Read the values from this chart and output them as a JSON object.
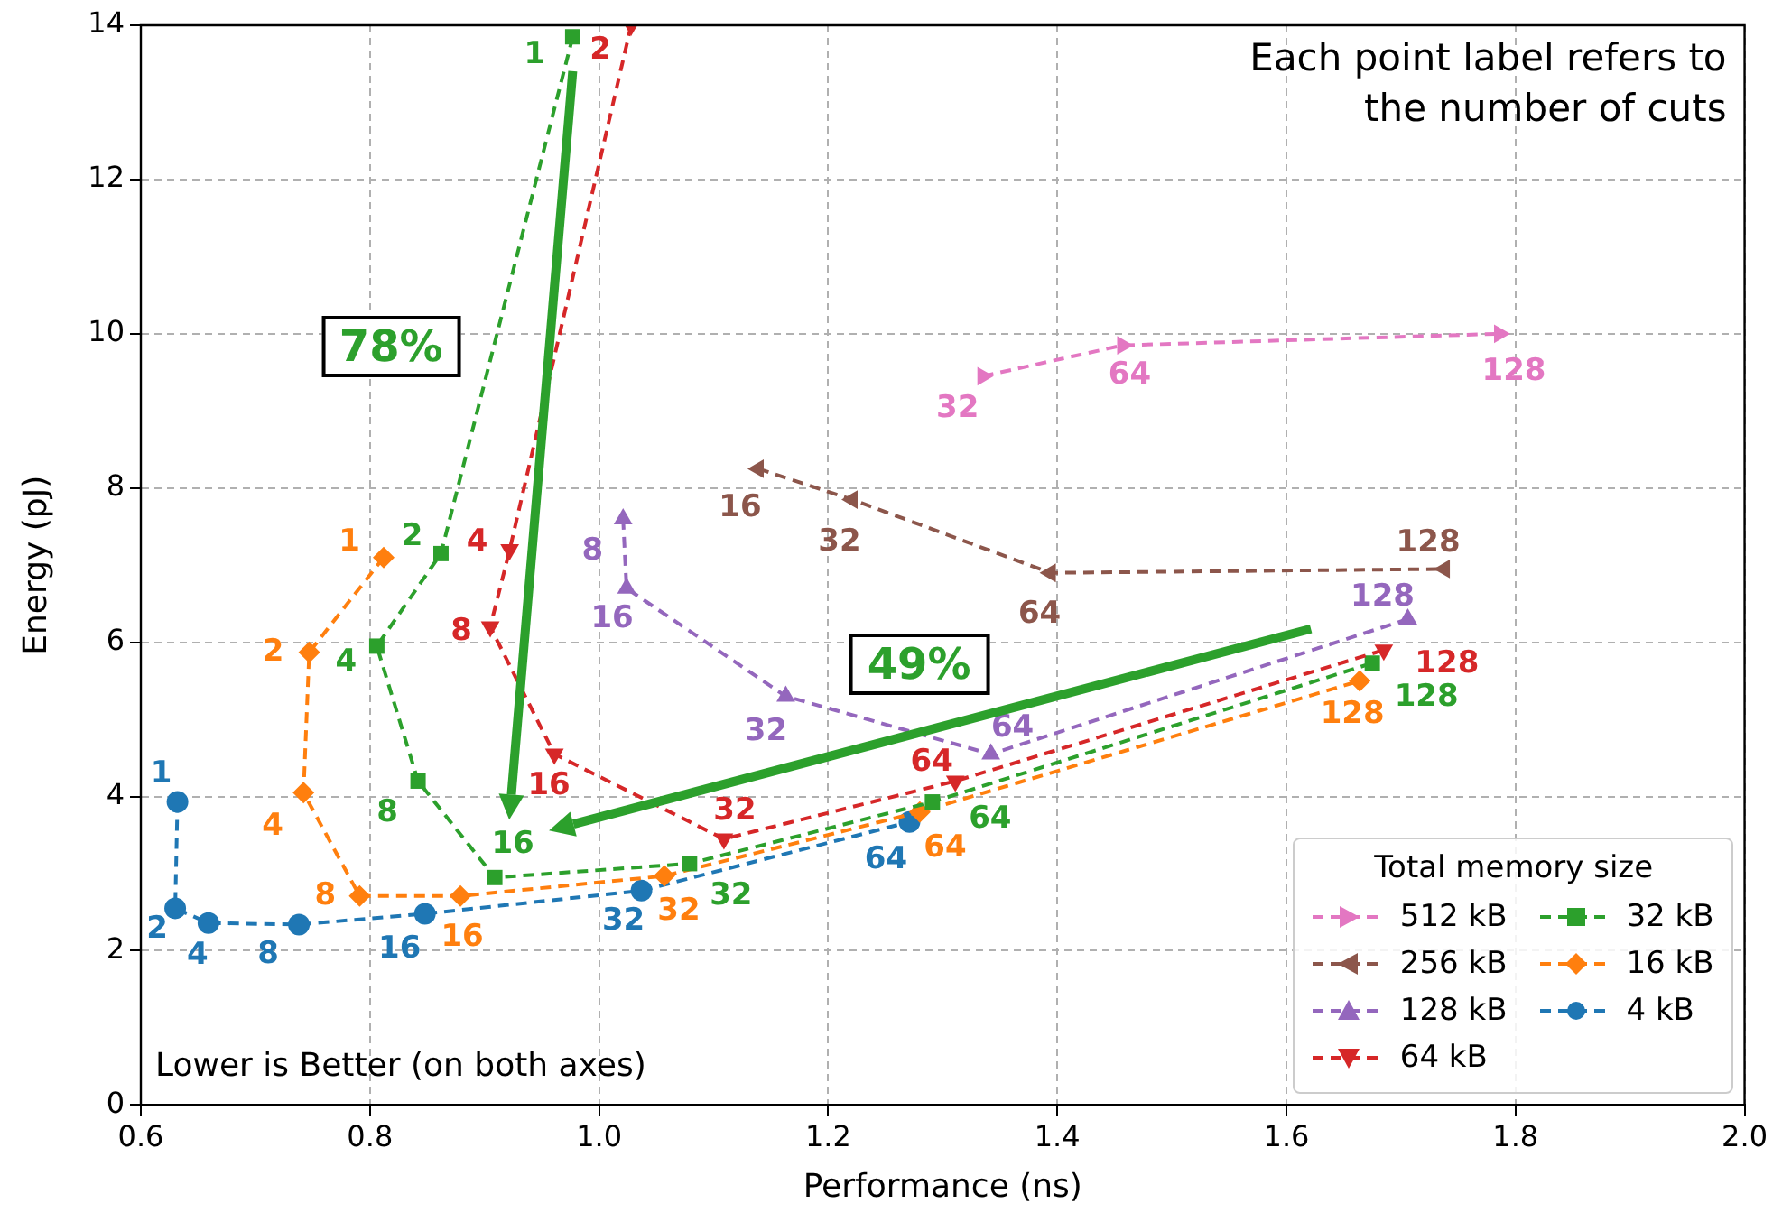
{
  "chart_data": {
    "type": "line",
    "xlabel": "Performance (ns)",
    "ylabel": "Energy (pJ)",
    "legend_title": "Total memory size",
    "xlim": [
      0.6,
      2.0
    ],
    "xticks": [
      0.6,
      0.8,
      {
        "value": 1,
        "label": "1.0"
      },
      1.2,
      1.4,
      1.6,
      1.8,
      {
        "value": 2,
        "label": "2.0"
      }
    ],
    "ylim": [
      0,
      14
    ],
    "yticks": [
      0,
      2,
      4,
      6,
      8,
      10,
      12,
      14
    ],
    "grid": true,
    "legend": "bottom right",
    "line_style": "dashed",
    "annotations": [
      "78%",
      "49%",
      "Each point label refers to the number of cuts",
      "Lower is Better (on both axes)",
      {
        "text": "32",
        "x": 1.335,
        "y": 9.45
      },
      {
        "text": "64",
        "x": 1.457,
        "y": 9.85
      },
      {
        "text": "128",
        "x": 1.786,
        "y": 10.0
      },
      {
        "text": "16",
        "x": 1.139,
        "y": 8.25
      },
      {
        "text": "32",
        "x": 1.221,
        "y": 7.85
      },
      {
        "text": "64",
        "x": 1.394,
        "y": 6.9
      },
      {
        "text": "128",
        "x": 1.738,
        "y": 6.95
      },
      {
        "text": "8",
        "x": 1.021,
        "y": 7.6
      },
      {
        "text": "16",
        "x": 1.024,
        "y": 6.7
      },
      {
        "text": "32",
        "x": 1.163,
        "y": 5.3
      },
      {
        "text": "64",
        "x": 1.342,
        "y": 4.55
      },
      {
        "text": "128",
        "x": 1.706,
        "y": 6.3
      },
      {
        "text": "2",
        "x": 1.028,
        "y": 14.0
      },
      {
        "text": "4",
        "x": 0.922,
        "y": 7.2
      },
      {
        "text": "8",
        "x": 0.905,
        "y": 6.2
      },
      {
        "text": "16",
        "x": 0.961,
        "y": 4.55
      },
      {
        "text": "32",
        "x": 1.109,
        "y": 3.45
      },
      {
        "text": "64",
        "x": 1.311,
        "y": 4.2
      },
      {
        "text": "128",
        "x": 1.685,
        "y": 5.9
      },
      {
        "text": "1",
        "x": 0.977,
        "y": 13.85
      },
      {
        "text": "2",
        "x": 0.862,
        "y": 7.15
      },
      {
        "text": "4",
        "x": 0.806,
        "y": 5.95
      },
      {
        "text": "8",
        "x": 0.842,
        "y": 4.2
      },
      {
        "text": "16",
        "x": 0.909,
        "y": 2.95
      },
      {
        "text": "32",
        "x": 1.079,
        "y": 3.13
      },
      {
        "text": "64",
        "x": 1.291,
        "y": 3.93
      },
      {
        "text": "128",
        "x": 1.675,
        "y": 5.73
      },
      {
        "text": "1",
        "x": 0.812,
        "y": 7.1
      },
      {
        "text": "2",
        "x": 0.747,
        "y": 5.87
      },
      {
        "text": "4",
        "x": 0.742,
        "y": 4.05
      },
      {
        "text": "8",
        "x": 0.791,
        "y": 2.71
      },
      {
        "text": "16",
        "x": 0.879,
        "y": 2.71
      },
      {
        "text": "32",
        "x": 1.057,
        "y": 2.97
      },
      {
        "text": "64",
        "x": 1.28,
        "y": 3.8
      },
      {
        "text": "128",
        "x": 1.664,
        "y": 5.5
      },
      {
        "text": "1",
        "x": 0.632,
        "y": 3.93
      },
      {
        "text": "2",
        "x": 0.63,
        "y": 2.55
      },
      {
        "text": "4",
        "x": 0.659,
        "y": 2.36
      },
      {
        "text": "8",
        "x": 0.738,
        "y": 2.34
      },
      {
        "text": "16",
        "x": 0.848,
        "y": 2.48
      },
      {
        "text": "32",
        "x": 1.037,
        "y": 2.78
      },
      {
        "text": "64",
        "x": 1.271,
        "y": 3.67
      }
    ],
    "series": [
      {
        "name": "512 kB",
        "color": "#e377c2",
        "marker": "triangle",
        "x": [
          1.335,
          1.457,
          1.786
        ],
        "values": [
          9.45,
          9.85,
          10.0
        ]
      },
      {
        "name": "256 kB",
        "color": "#8c564b",
        "marker": "triangle",
        "x": [
          1.139,
          1.221,
          1.394,
          1.738
        ],
        "values": [
          8.25,
          7.85,
          6.9,
          6.95
        ]
      },
      {
        "name": "128 kB",
        "color": "#9467bd",
        "marker": "triangle",
        "x": [
          1.021,
          1.024,
          1.163,
          1.342,
          1.706
        ],
        "values": [
          7.6,
          6.7,
          5.3,
          4.55,
          6.3
        ]
      },
      {
        "name": "64 kB",
        "color": "#d62728",
        "marker": "triangle",
        "x": [
          1.028,
          0.922,
          0.905,
          0.961,
          1.109,
          1.311,
          1.685
        ],
        "values": [
          14.0,
          7.2,
          6.2,
          4.55,
          3.45,
          4.2,
          5.9
        ]
      },
      {
        "name": "32 kB",
        "color": "#2ca02c",
        "marker": "square",
        "x": [
          0.977,
          0.862,
          0.806,
          0.842,
          0.909,
          1.079,
          1.291,
          1.675
        ],
        "values": [
          13.85,
          7.15,
          5.95,
          4.2,
          2.95,
          3.13,
          3.93,
          5.73
        ]
      },
      {
        "name": "16 kB",
        "color": "#ff7f0e",
        "marker": "diamond",
        "x": [
          0.812,
          0.747,
          0.742,
          0.791,
          0.879,
          1.057,
          1.28,
          1.664
        ],
        "values": [
          7.1,
          5.87,
          4.05,
          2.71,
          2.71,
          2.97,
          3.8,
          5.5
        ]
      },
      {
        "name": "4 kB",
        "color": "#1f77b4",
        "marker": "circle",
        "x": [
          0.632,
          0.63,
          0.659,
          0.738,
          0.848,
          1.037,
          1.271
        ],
        "values": [
          3.93,
          2.55,
          2.36,
          2.34,
          2.48,
          2.78,
          3.67
        ]
      }
    ]
  }
}
